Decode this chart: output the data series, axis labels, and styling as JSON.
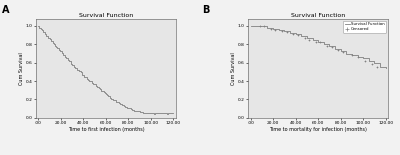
{
  "panel_A": {
    "title": "Survival Function",
    "xlabel": "Time to first infection (months)",
    "ylabel": "Cum Survival",
    "label": "A",
    "x_ticks": [
      0,
      20,
      40,
      60,
      80,
      100,
      120
    ],
    "x_tick_labels": [
      ".00",
      "20.00",
      "40.00",
      "60.00",
      "80.00",
      "100.00",
      "120.00"
    ],
    "y_ticks": [
      0.0,
      0.2,
      0.4,
      0.6,
      0.8,
      1.0
    ],
    "y_tick_labels": [
      "0.0",
      "0.2",
      "0.4",
      "0.6",
      "0.8",
      "1.0"
    ],
    "curve_color": "#808080",
    "bg_color": "#e6e6e6",
    "fig_bg": "#f0f0f0",
    "km_t": [
      0,
      1,
      2,
      3,
      4,
      5,
      6,
      7,
      8,
      9,
      10,
      11,
      12,
      13,
      14,
      15,
      16,
      17,
      18,
      19,
      20,
      21,
      22,
      23,
      24,
      25,
      26,
      27,
      28,
      29,
      30,
      31,
      32,
      33,
      34,
      35,
      36,
      37,
      38,
      39,
      40,
      41,
      42,
      43,
      44,
      45,
      46,
      47,
      48,
      49,
      50,
      51,
      52,
      53,
      54,
      55,
      56,
      57,
      58,
      59,
      60,
      61,
      62,
      63,
      64,
      65,
      66,
      67,
      68,
      69,
      70,
      71,
      72,
      73,
      74,
      75,
      76,
      77,
      78,
      79,
      80,
      81,
      82,
      83,
      84,
      85,
      86,
      87,
      88,
      89,
      90,
      91,
      92,
      93,
      94,
      95,
      96,
      97,
      98,
      99,
      100,
      101,
      102,
      103,
      104,
      105,
      106,
      107,
      108,
      109,
      110,
      111,
      112,
      113,
      114,
      115,
      116,
      117,
      118,
      119,
      120
    ],
    "km_s": [
      1.0,
      0.98,
      0.97,
      0.95,
      0.94,
      0.93,
      0.91,
      0.9,
      0.89,
      0.87,
      0.86,
      0.84,
      0.83,
      0.82,
      0.8,
      0.79,
      0.77,
      0.76,
      0.74,
      0.73,
      0.72,
      0.7,
      0.69,
      0.68,
      0.66,
      0.65,
      0.63,
      0.62,
      0.61,
      0.59,
      0.58,
      0.57,
      0.56,
      0.54,
      0.53,
      0.52,
      0.51,
      0.5,
      0.49,
      0.47,
      0.46,
      0.45,
      0.44,
      0.43,
      0.42,
      0.41,
      0.4,
      0.39,
      0.38,
      0.37,
      0.36,
      0.35,
      0.34,
      0.33,
      0.32,
      0.31,
      0.3,
      0.29,
      0.28,
      0.27,
      0.26,
      0.25,
      0.24,
      0.23,
      0.22,
      0.21,
      0.2,
      0.2,
      0.19,
      0.18,
      0.17,
      0.17,
      0.16,
      0.15,
      0.14,
      0.14,
      0.13,
      0.12,
      0.12,
      0.11,
      0.11,
      0.1,
      0.1,
      0.09,
      0.09,
      0.08,
      0.08,
      0.07,
      0.07,
      0.07,
      0.06,
      0.06,
      0.06,
      0.05,
      0.05,
      0.05,
      0.05,
      0.05,
      0.05,
      0.05,
      0.05,
      0.05,
      0.05,
      0.05,
      0.05,
      0.05,
      0.05,
      0.05,
      0.05,
      0.05,
      0.05,
      0.05,
      0.05,
      0.05,
      0.05,
      0.05,
      0.05,
      0.05,
      0.05,
      0.05,
      0.05
    ]
  },
  "panel_B": {
    "title": "Survival Function",
    "xlabel": "Time to mortality for infection (months)",
    "ylabel": "Cum Survival",
    "label": "B",
    "x_ticks": [
      0,
      20,
      40,
      60,
      80,
      100,
      120
    ],
    "x_tick_labels": [
      ".00",
      "20.00",
      "40.00",
      "60.00",
      "80.00",
      "100.00",
      "120.00"
    ],
    "y_ticks": [
      0.0,
      0.2,
      0.4,
      0.6,
      0.8,
      1.0
    ],
    "y_tick_labels": [
      "0.0",
      "0.2",
      "0.4",
      "0.6",
      "0.8",
      "1.0"
    ],
    "curve_color": "#808080",
    "censored_color": "#808080",
    "bg_color": "#e6e6e6",
    "fig_bg": "#f0f0f0",
    "legend_labels": [
      "Survival Function",
      "Censored"
    ],
    "km_t": [
      0,
      5,
      10,
      15,
      20,
      25,
      30,
      35,
      40,
      45,
      50,
      55,
      60,
      65,
      70,
      75,
      80,
      85,
      90,
      95,
      100,
      105,
      110,
      115,
      120
    ],
    "km_s": [
      1.0,
      1.0,
      1.0,
      0.98,
      0.97,
      0.96,
      0.94,
      0.92,
      0.91,
      0.89,
      0.87,
      0.85,
      0.82,
      0.8,
      0.78,
      0.75,
      0.73,
      0.7,
      0.68,
      0.66,
      0.65,
      0.62,
      0.6,
      0.55,
      0.54
    ],
    "censor_t": [
      8,
      12,
      18,
      22,
      28,
      32,
      38,
      42,
      48,
      52,
      58,
      62,
      68,
      72,
      78,
      82,
      90,
      95,
      102,
      108,
      112
    ],
    "censor_s": [
      1.0,
      1.0,
      0.97,
      0.96,
      0.94,
      0.93,
      0.91,
      0.9,
      0.87,
      0.85,
      0.82,
      0.82,
      0.78,
      0.77,
      0.74,
      0.72,
      0.68,
      0.66,
      0.62,
      0.59,
      0.55
    ]
  }
}
